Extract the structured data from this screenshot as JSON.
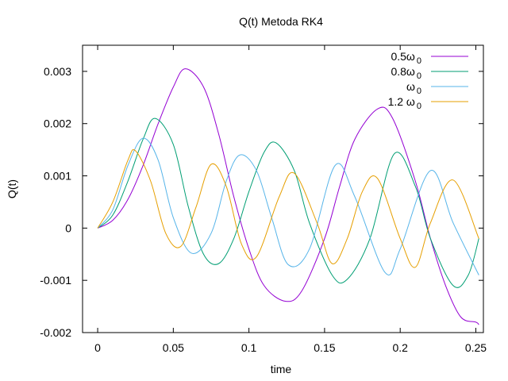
{
  "chart_data": {
    "type": "line",
    "title": "Q(t) Metoda RK4",
    "xlabel": "time",
    "ylabel": "Q(t)",
    "xlim": [
      -0.01,
      0.255
    ],
    "ylim": [
      -0.002,
      0.0035
    ],
    "x_ticks": [
      {
        "value": 0,
        "label": "0"
      },
      {
        "value": 0.05,
        "label": "0.05"
      },
      {
        "value": 0.1,
        "label": "0.1"
      },
      {
        "value": 0.15,
        "label": "0.15"
      },
      {
        "value": 0.2,
        "label": "0.2"
      },
      {
        "value": 0.25,
        "label": "0.25"
      }
    ],
    "y_ticks": [
      {
        "value": -0.002,
        "label": "-0.002"
      },
      {
        "value": -0.001,
        "label": "-0.001"
      },
      {
        "value": 0,
        "label": "0"
      },
      {
        "value": 0.001,
        "label": "0.001"
      },
      {
        "value": 0.002,
        "label": "0.002"
      },
      {
        "value": 0.003,
        "label": "0.003"
      }
    ],
    "grid": false,
    "legend_position": "top-right",
    "series": [
      {
        "name": "0.5ω0",
        "legend_main": "0.5ω",
        "legend_sub": "0",
        "color": "#9400d3",
        "x": [
          0,
          0.01,
          0.02,
          0.03,
          0.04,
          0.05,
          0.058,
          0.07,
          0.08,
          0.09,
          0.1,
          0.11,
          0.124,
          0.135,
          0.15,
          0.16,
          0.17,
          0.185,
          0.195,
          0.21,
          0.22,
          0.23,
          0.24,
          0.25,
          0.252
        ],
        "y": [
          0,
          0.00015,
          0.00055,
          0.0012,
          0.002,
          0.0027,
          0.00305,
          0.0027,
          0.0018,
          0.0006,
          -0.0004,
          -0.0011,
          -0.0014,
          -0.0012,
          -0.0002,
          0.0008,
          0.0017,
          0.00228,
          0.0021,
          0.0009,
          -0.0002,
          -0.0011,
          -0.0017,
          -0.0018,
          -0.00185
        ]
      },
      {
        "name": "0.8ω0",
        "legend_main": "0.8ω",
        "legend_sub": "0",
        "color": "#009e73",
        "x": [
          0,
          0.01,
          0.02,
          0.03,
          0.038,
          0.05,
          0.06,
          0.07,
          0.08,
          0.09,
          0.1,
          0.11,
          0.118,
          0.13,
          0.14,
          0.155,
          0.165,
          0.18,
          0.196,
          0.21,
          0.22,
          0.235,
          0.245,
          0.252
        ],
        "y": [
          0,
          0.00025,
          0.0009,
          0.0017,
          0.0021,
          0.0016,
          0.0004,
          -0.0005,
          -0.00068,
          -0.0002,
          0.0007,
          0.00145,
          0.00163,
          0.0011,
          0.0001,
          -0.0009,
          -0.00098,
          -0.0002,
          0.00142,
          0.0008,
          -0.0002,
          -0.0011,
          -0.0009,
          -0.0002
        ]
      },
      {
        "name": "ω0",
        "legend_main": "ω",
        "legend_sub": "0",
        "color": "#56b4e9",
        "x": [
          0,
          0.01,
          0.02,
          0.03,
          0.04,
          0.05,
          0.062,
          0.075,
          0.085,
          0.094,
          0.105,
          0.115,
          0.126,
          0.14,
          0.157,
          0.17,
          0.19,
          0.2,
          0.22,
          0.235,
          0.252
        ],
        "y": [
          0,
          0.00035,
          0.0012,
          0.00172,
          0.0013,
          0.0002,
          -0.00048,
          -0.0001,
          0.0009,
          0.0014,
          0.0011,
          0.0002,
          -0.0007,
          -0.0004,
          0.0012,
          0.0006,
          -0.00085,
          -0.0004,
          0.0011,
          0.0001,
          -0.0009
        ]
      },
      {
        "name": "1.2 ω0",
        "legend_main": "1.2 ω",
        "legend_sub": "0",
        "color": "#e69f00",
        "x": [
          0,
          0.01,
          0.02,
          0.025,
          0.035,
          0.045,
          0.055,
          0.065,
          0.075,
          0.085,
          0.095,
          0.105,
          0.12,
          0.13,
          0.145,
          0.155,
          0.165,
          0.175,
          0.185,
          0.2,
          0.21,
          0.22,
          0.235,
          0.252
        ],
        "y": [
          0,
          0.0005,
          0.0013,
          0.00148,
          0.0009,
          -0.0001,
          -0.00035,
          0.0004,
          0.00122,
          0.0008,
          -0.0003,
          -0.00055,
          0.0006,
          0.00105,
          0.0001,
          -0.00068,
          -0.0002,
          0.0007,
          0.00095,
          -0.0002,
          -0.00075,
          0.0001,
          0.00092,
          -0.0002
        ]
      }
    ]
  }
}
